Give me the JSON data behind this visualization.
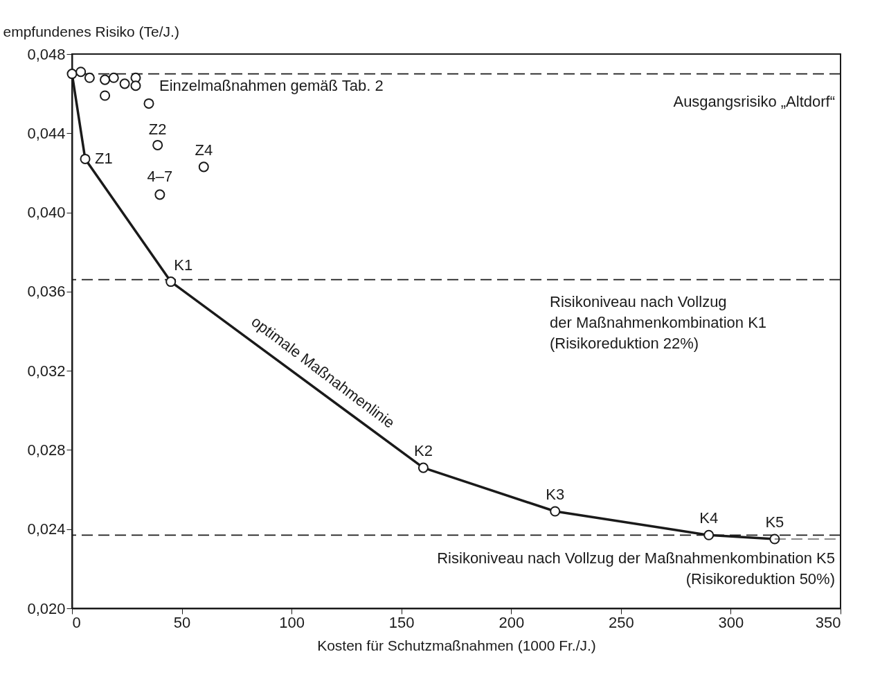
{
  "chart_data": {
    "type": "line",
    "xlabel": "Kosten für Schutzmaßnahmen (1000 Fr./J.)",
    "ylabel": "empfundenes Risiko (Te/J.)",
    "xlim": [
      0,
      350
    ],
    "xticks": [
      0,
      50,
      100,
      150,
      200,
      250,
      300,
      350
    ],
    "ylim": [
      0.02,
      0.048
    ],
    "yticks": [
      {
        "value": 0.02,
        "label": "0,020"
      },
      {
        "value": 0.024,
        "label": "0,024"
      },
      {
        "value": 0.028,
        "label": "0,028"
      },
      {
        "value": 0.032,
        "label": "0,032"
      },
      {
        "value": 0.036,
        "label": "0,036"
      },
      {
        "value": 0.04,
        "label": "0,040"
      },
      {
        "value": 0.044,
        "label": "0,044"
      },
      {
        "value": 0.048,
        "label": "0,048"
      }
    ],
    "grid": false,
    "marker": "circle",
    "series": [
      {
        "type": "line",
        "color": "#1a1a1a",
        "line_style": "solid",
        "x": [
          0,
          6,
          45,
          160,
          220,
          290,
          320
        ],
        "values": [
          0.047,
          0.0427,
          0.0365,
          0.0271,
          0.0249,
          0.0237,
          0.0235
        ]
      },
      {
        "type": "scatter",
        "color": "#1a1a1a",
        "x": [
          4,
          8,
          15,
          15,
          19,
          24,
          29,
          29,
          35,
          39,
          60,
          40
        ],
        "values": [
          0.0471,
          0.0468,
          0.0467,
          0.0459,
          0.0468,
          0.0465,
          0.0468,
          0.0464,
          0.0455,
          0.0434,
          0.0423,
          0.0409
        ]
      },
      {
        "type": "line",
        "color": "#1a1a1a",
        "line_style": "dashed",
        "marker": "none",
        "x": [
          320,
          350
        ],
        "values": [
          0.0235,
          0.0235
        ]
      }
    ],
    "ref_lines": [
      {
        "axis": "y",
        "value": 0.047,
        "label": "Ausgangsrisiko „Altdorf“",
        "line_style": "dashed",
        "color": "#1a1a1a"
      },
      {
        "axis": "y",
        "value": 0.0366,
        "label": "Risikoniveau nach Vollzug\nder Maßnahmenkombination K1\n(Risikoreduktion 22%)",
        "line_style": "dashed",
        "color": "#1a1a1a"
      },
      {
        "axis": "y",
        "value": 0.0237,
        "label": "Risikoniveau nach Vollzug der Maßnahmenkombination K5\n(Risikoreduktion 50%)",
        "line_style": "dashed",
        "color": "#1a1a1a"
      }
    ],
    "annotations": [
      {
        "text": "Z1",
        "x": 6,
        "y": 0.0427
      },
      {
        "text": "Z2",
        "x": 39,
        "y": 0.0434
      },
      {
        "text": "Z4",
        "x": 60,
        "y": 0.0423
      },
      {
        "text": "4–7",
        "x": 40,
        "y": 0.0409
      },
      {
        "text": "K1",
        "x": 45,
        "y": 0.0365
      },
      {
        "text": "K2",
        "x": 160,
        "y": 0.0271
      },
      {
        "text": "K3",
        "x": 220,
        "y": 0.0249
      },
      {
        "text": "K4",
        "x": 290,
        "y": 0.0237
      },
      {
        "text": "K5",
        "x": 320,
        "y": 0.0235
      },
      {
        "text": "Einzelmaßnahmen gemäß Tab. 2",
        "x": 29,
        "y": 0.0464
      },
      {
        "text": "optimale Maßnahmenlinie",
        "x": 100,
        "y": 0.0318
      }
    ]
  }
}
